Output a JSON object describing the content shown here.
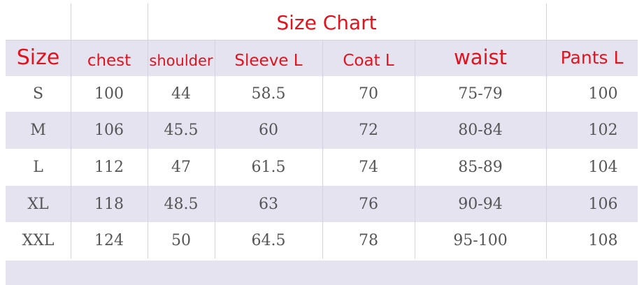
{
  "title": "Size Chart",
  "table": {
    "headers": [
      "Size",
      "chest",
      "shoulder",
      "Sleeve L",
      "Coat L",
      "waist",
      "Pants L"
    ],
    "rows": [
      [
        "S",
        "100",
        "44",
        "58.5",
        "70",
        "75-79",
        "100"
      ],
      [
        "M",
        "106",
        "45.5",
        "60",
        "72",
        "80-84",
        "102"
      ],
      [
        "L",
        "112",
        "47",
        "61.5",
        "74",
        "85-89",
        "104"
      ],
      [
        "XL",
        "118",
        "48.5",
        "63",
        "76",
        "90-94",
        "106"
      ],
      [
        "XXL",
        "124",
        "50",
        "64.5",
        "78",
        "95-100",
        "108"
      ]
    ]
  }
}
